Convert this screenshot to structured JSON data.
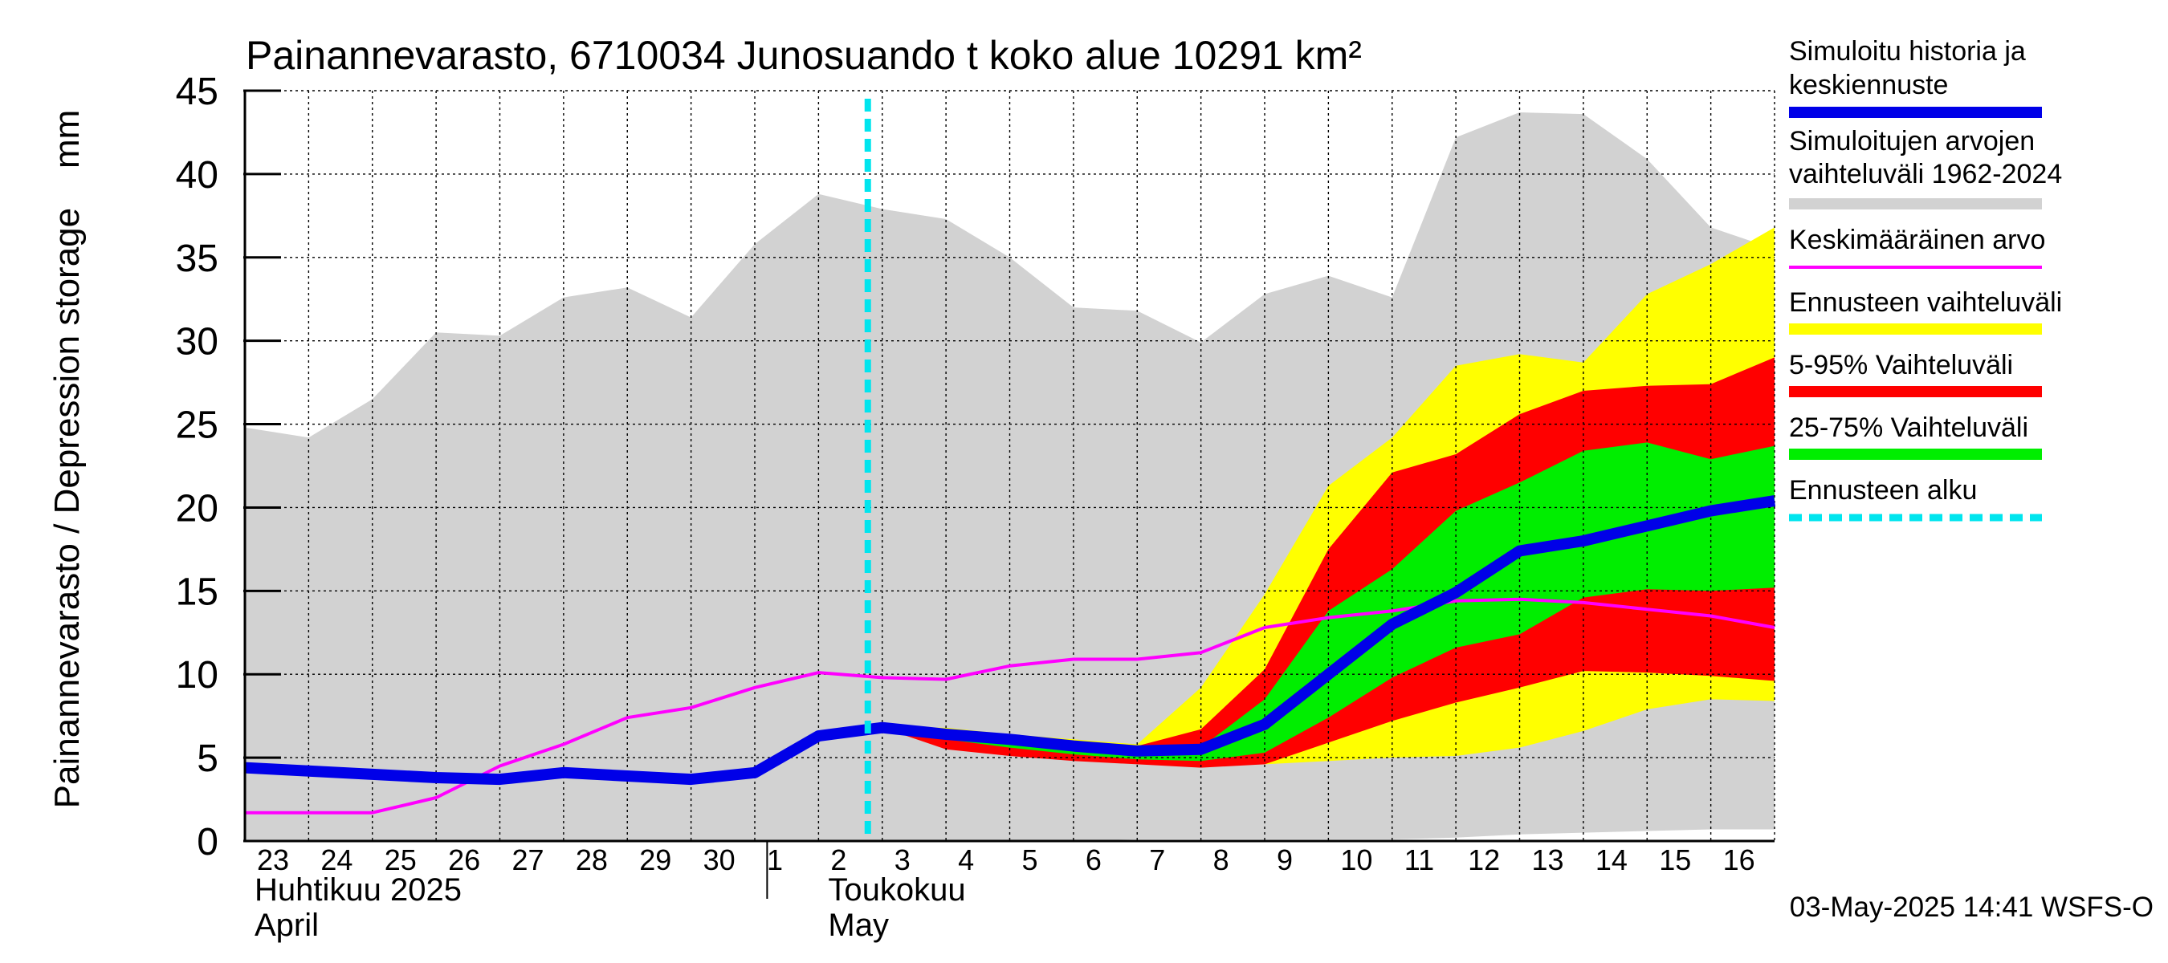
{
  "chart_data": {
    "type": "area",
    "title": "Painannevarasto, 6710034 Junosuando t koko alue 10291 km²",
    "ylabel": "Painannevarasto / Depression storage    mm",
    "ylim": [
      0,
      45
    ],
    "yticks": [
      0,
      5,
      10,
      15,
      20,
      25,
      30,
      35,
      40,
      45
    ],
    "grid": true,
    "legend_position": "right",
    "x_dates": [
      "2025-04-23",
      "2025-04-24",
      "2025-04-25",
      "2025-04-26",
      "2025-04-27",
      "2025-04-28",
      "2025-04-29",
      "2025-04-30",
      "2025-05-01",
      "2025-05-02",
      "2025-05-03",
      "2025-05-04",
      "2025-05-05",
      "2025-05-06",
      "2025-05-07",
      "2025-05-08",
      "2025-05-09",
      "2025-05-10",
      "2025-05-11",
      "2025-05-12",
      "2025-05-13",
      "2025-05-14",
      "2025-05-15",
      "2025-05-16",
      "2025-05-17"
    ],
    "x_tick_labels": [
      "23",
      "24",
      "25",
      "26",
      "27",
      "28",
      "29",
      "30",
      "1",
      "2",
      "3",
      "4",
      "5",
      "6",
      "7",
      "8",
      "9",
      "10",
      "11",
      "12",
      "13",
      "14",
      "15",
      "16"
    ],
    "month_labels": [
      {
        "date": "2025-04-23",
        "fi": "Huhtikuu  2025",
        "en": "April"
      },
      {
        "date": "2025-05-02",
        "fi": "Toukokuu",
        "en": "May"
      }
    ],
    "forecast_start": "2025-05-03",
    "series": [
      {
        "name": "Simuloitujen arvojen vaihteluväli 1962-2024",
        "kind": "band",
        "lower": [
          0,
          0,
          0,
          0,
          0,
          0,
          0,
          0,
          0,
          0,
          0,
          0,
          0,
          0,
          0.1,
          0.1,
          0.1,
          0.1,
          0.1,
          0.2,
          0.4,
          0.5,
          0.6,
          0.7,
          0.7
        ],
        "upper": [
          24.8,
          24.2,
          26.5,
          30.5,
          30.3,
          32.6,
          33.2,
          31.4,
          35.8,
          38.8,
          37.9,
          37.3,
          35.0,
          32.0,
          31.8,
          29.9,
          32.8,
          33.9,
          32.6,
          42.2,
          43.7,
          43.6,
          40.9,
          36.8,
          35.5
        ]
      },
      {
        "name": "Ennusteen vaihteluväli",
        "kind": "band",
        "start": "2025-05-03",
        "lower": [
          6.8,
          5.9,
          5.4,
          5.0,
          4.7,
          4.6,
          4.6,
          4.8,
          5.0,
          5.1,
          5.6,
          6.6,
          7.9,
          8.5,
          8.4
        ],
        "upper": [
          6.8,
          6.8,
          6.4,
          6.1,
          5.8,
          9.2,
          14.8,
          21.3,
          24.2,
          28.5,
          29.2,
          28.7,
          32.8,
          34.6,
          36.8
        ]
      },
      {
        "name": "5-95% Vaihteluväli",
        "kind": "band",
        "start": "2025-05-03",
        "lower": [
          6.8,
          5.5,
          5.1,
          4.8,
          4.6,
          4.4,
          4.6,
          5.9,
          7.2,
          8.3,
          9.2,
          10.2,
          10.1,
          9.9,
          9.6
        ],
        "upper": [
          6.8,
          6.6,
          6.2,
          5.9,
          5.7,
          6.7,
          10.3,
          17.5,
          22.1,
          23.2,
          25.6,
          27.0,
          27.3,
          27.4,
          29.0
        ]
      },
      {
        "name": "25-75% Vaihteluväli",
        "kind": "band",
        "start": "2025-05-03",
        "lower": [
          6.8,
          6.1,
          5.6,
          5.2,
          4.9,
          4.8,
          5.3,
          7.4,
          9.8,
          11.6,
          12.4,
          14.6,
          15.1,
          15.0,
          15.2
        ],
        "upper": [
          6.8,
          6.4,
          6.0,
          5.6,
          5.3,
          5.6,
          8.5,
          13.8,
          16.3,
          19.8,
          21.5,
          23.4,
          23.9,
          22.9,
          23.7
        ]
      },
      {
        "name": "Keskimääräinen arvo",
        "kind": "line",
        "values": [
          1.7,
          1.7,
          1.7,
          2.6,
          4.5,
          5.8,
          7.4,
          8.0,
          9.2,
          10.1,
          9.8,
          9.7,
          10.5,
          10.9,
          10.9,
          11.3,
          12.8,
          13.4,
          13.8,
          14.4,
          14.5,
          14.3,
          13.9,
          13.5,
          12.8
        ]
      },
      {
        "name": "Simuloitu historia ja keskiennuste",
        "kind": "line",
        "values": [
          4.4,
          4.2,
          4.0,
          3.8,
          3.7,
          4.1,
          3.9,
          3.7,
          4.1,
          6.3,
          6.8,
          6.4,
          6.1,
          5.7,
          5.4,
          5.5,
          7.0,
          10.0,
          13.0,
          14.9,
          17.4,
          18.0,
          18.9,
          19.8,
          20.4
        ]
      }
    ]
  },
  "legend": [
    {
      "label": "Simuloitu historia ja keskiennuste",
      "color": "#0000e8",
      "style": "thick"
    },
    {
      "label": "Simuloitujen arvojen vaihteluväli 1962-2024",
      "color": "#d2d2d2",
      "style": "thick"
    },
    {
      "label": "Keskimääräinen arvo",
      "color": "#ff00ff",
      "style": "thin"
    },
    {
      "label": "Ennusteen vaihteluväli",
      "color": "#ffff00",
      "style": "thick"
    },
    {
      "label": "5-95% Vaihteluväli",
      "color": "#ff0000",
      "style": "thick"
    },
    {
      "label": "25-75% Vaihteluväli",
      "color": "#00ee00",
      "style": "thick"
    },
    {
      "label": "Ennusteen alku",
      "color": "#00e5ee",
      "style": "dashed"
    }
  ],
  "footer_text": "03-May-2025 14:41 WSFS-O",
  "colors": {
    "grey_band": "#d2d2d2",
    "yellow_band": "#ffff00",
    "red_band": "#ff0000",
    "green_band": "#00ee00",
    "mean_line": "#ff00ff",
    "median_line": "#0000e8",
    "forecast_start_line": "#00e5ee"
  }
}
